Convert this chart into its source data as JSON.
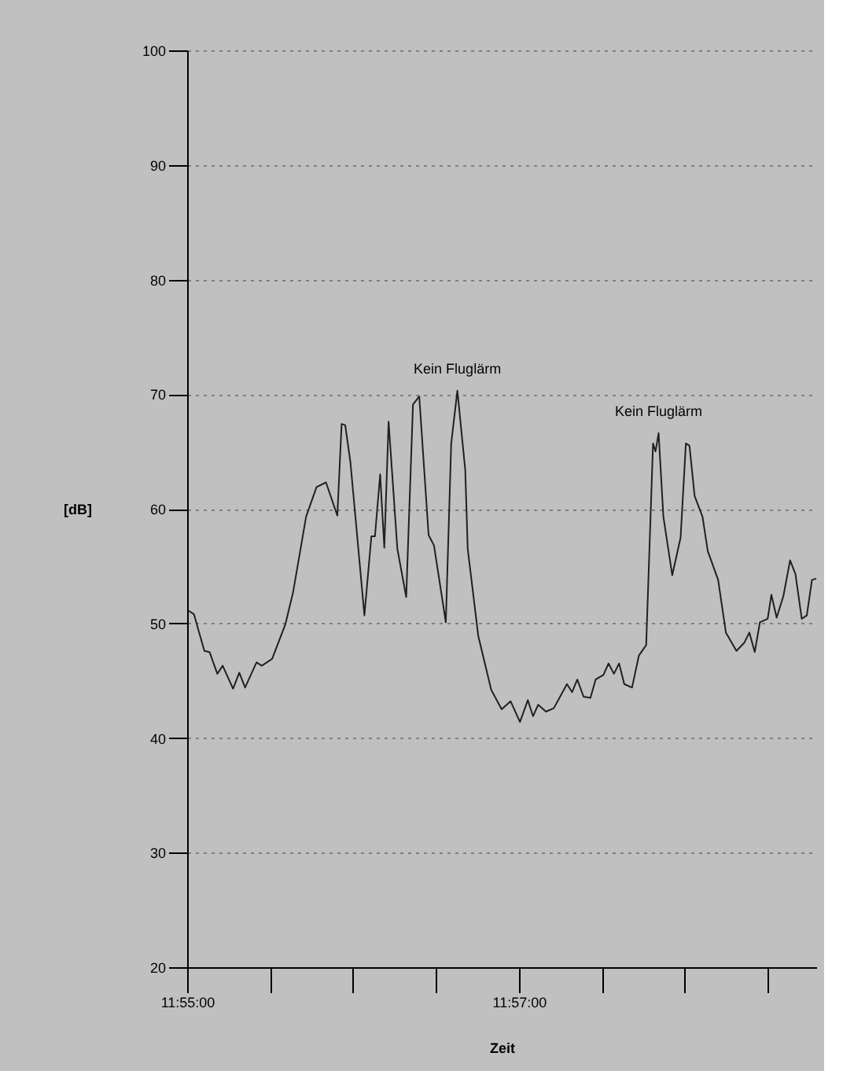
{
  "chart_data": {
    "type": "line",
    "xlabel": "Zeit",
    "ylabel": "[dB]",
    "grid": "y",
    "line_style": "solid",
    "xlim": [
      11.91667,
      11.97988
    ],
    "ylim": [
      20,
      100
    ],
    "xticks": [
      {
        "value": 11.91667,
        "label": "11:55:00"
      },
      {
        "value": 11.925,
        "label": null
      },
      {
        "value": 11.93333,
        "label": null
      },
      {
        "value": 11.94167,
        "label": null
      },
      {
        "value": 11.95,
        "label": "11:57:00"
      },
      {
        "value": 11.95833,
        "label": null
      },
      {
        "value": 11.96667,
        "label": null
      },
      {
        "value": 11.975,
        "label": null
      }
    ],
    "yticks": [
      20,
      30,
      40,
      50,
      60,
      70,
      80,
      90,
      100
    ],
    "annotations": [
      {
        "text": "Kein Fluglärm",
        "x": 11.94382,
        "y": 70.3
      },
      {
        "text": "Kein Fluglärm",
        "x": 11.96404,
        "y": 66.6
      }
    ],
    "series": [
      {
        "color": "#202020",
        "x": [
          11.91683,
          11.91735,
          11.9184,
          11.91892,
          11.9197,
          11.92024,
          11.92128,
          11.92191,
          11.92249,
          11.92364,
          11.92417,
          11.92521,
          11.92653,
          11.92731,
          11.92862,
          11.92967,
          11.93062,
          11.93176,
          11.93219,
          11.93255,
          11.93307,
          11.93448,
          11.93518,
          11.93554,
          11.93606,
          11.93648,
          11.93691,
          11.93779,
          11.93868,
          11.93936,
          11.93999,
          11.94093,
          11.94147,
          11.94266,
          11.9432,
          11.94382,
          11.94461,
          11.94486,
          11.94592,
          11.94722,
          11.94827,
          11.94917,
          11.95011,
          11.9509,
          11.95142,
          11.95194,
          11.95272,
          11.95351,
          11.95483,
          11.95535,
          11.95587,
          11.9565,
          11.95719,
          11.95771,
          11.95849,
          11.95901,
          11.95955,
          11.96007,
          11.96059,
          11.96137,
          11.96206,
          11.96279,
          11.96348,
          11.96373,
          11.96404,
          11.96452,
          11.96541,
          11.96625,
          11.96678,
          11.96714,
          11.96766,
          11.96845,
          11.96898,
          11.97002,
          11.9708,
          11.97186,
          11.97264,
          11.97316,
          11.9737,
          11.97422,
          11.975,
          11.97537,
          11.9759,
          11.97658,
          11.97725,
          11.97779,
          11.97842,
          11.97893,
          11.97945,
          11.97988
        ],
        "values": [
          51.1,
          50.8,
          47.6,
          47.5,
          45.6,
          46.3,
          44.3,
          45.7,
          44.4,
          46.6,
          46.3,
          46.9,
          49.9,
          52.7,
          59.3,
          61.9,
          62.3,
          59.4,
          67.4,
          67.3,
          64.1,
          50.7,
          57.6,
          57.6,
          63.0,
          56.6,
          67.6,
          56.5,
          52.3,
          69.1,
          69.8,
          57.7,
          56.8,
          50.1,
          65.7,
          70.3,
          63.4,
          56.5,
          48.9,
          44.2,
          42.5,
          43.2,
          41.4,
          43.3,
          41.9,
          42.9,
          42.3,
          42.6,
          44.7,
          44.0,
          45.1,
          43.6,
          43.5,
          45.1,
          45.5,
          46.5,
          45.6,
          46.5,
          44.7,
          44.4,
          47.2,
          48.1,
          65.7,
          65.0,
          66.6,
          59.3,
          54.2,
          57.5,
          65.7,
          65.5,
          61.1,
          59.3,
          56.3,
          53.8,
          49.2,
          47.6,
          48.3,
          49.2,
          47.5,
          50.1,
          50.4,
          52.5,
          50.5,
          52.4,
          55.5,
          54.3,
          50.4,
          50.7,
          53.8,
          53.9
        ]
      }
    ]
  }
}
